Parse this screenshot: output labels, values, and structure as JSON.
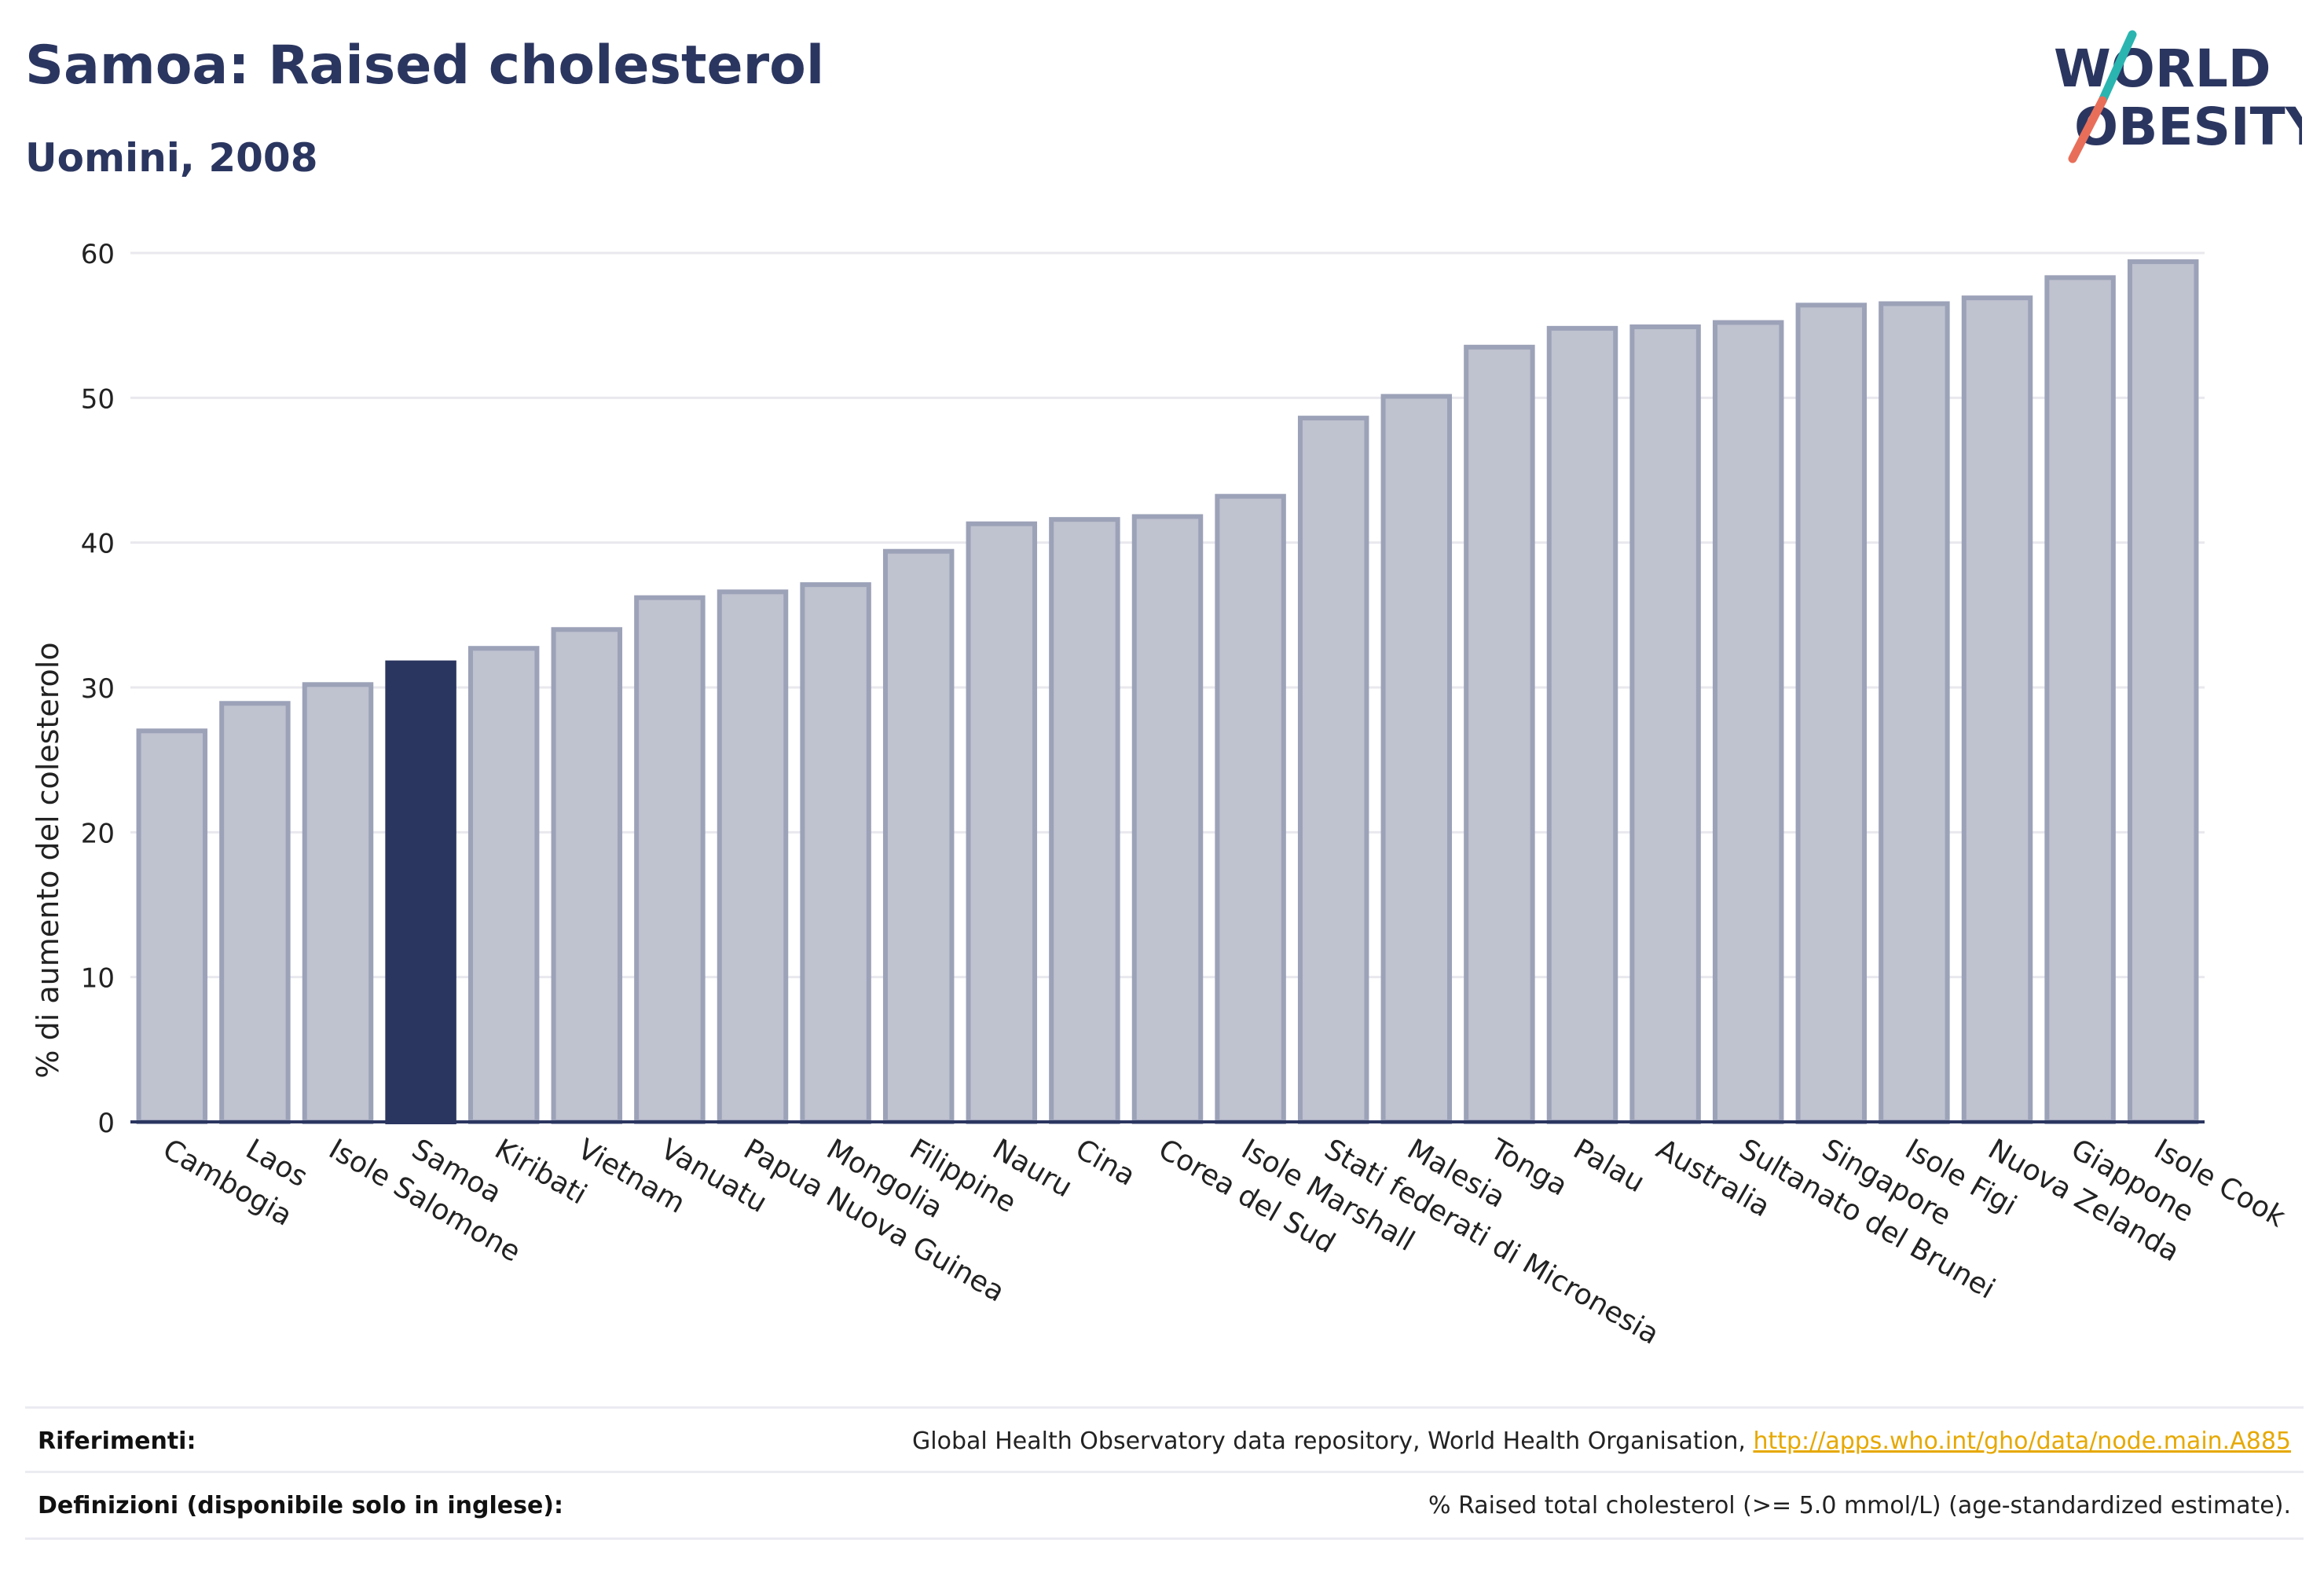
{
  "header": {
    "title": "Samoa: Raised cholesterol",
    "subtitle": "Uomini, 2008"
  },
  "logo": {
    "line1": "WORLD",
    "line2": "OBESITY"
  },
  "chart_data": {
    "type": "bar",
    "ylabel": "% di aumento del colesterolo",
    "xlabel": "",
    "ylim": [
      0,
      60
    ],
    "yticks": [
      0,
      10,
      20,
      30,
      40,
      50,
      60
    ],
    "grid": true,
    "highlight": "Samoa",
    "categories": [
      "Cambogia",
      "Laos",
      "Isole Salomone",
      "Samoa",
      "Kiribati",
      "Vietnam",
      "Vanuatu",
      "Papua Nuova Guinea",
      "Mongolia",
      "Filippine",
      "Nauru",
      "Cina",
      "Corea del Sud",
      "Isole Marshall",
      "Stati federati di Micronesia",
      "Malesia",
      "Tonga",
      "Palau",
      "Australia",
      "Sultanato del Brunei",
      "Singapore",
      "Isole Figi",
      "Nuova Zelanda",
      "Giappone",
      "Isole Cook"
    ],
    "values": [
      27.0,
      28.9,
      30.2,
      31.7,
      32.7,
      34.0,
      36.2,
      36.6,
      37.1,
      39.4,
      41.3,
      41.6,
      41.8,
      43.2,
      48.6,
      50.1,
      53.5,
      54.8,
      54.9,
      55.2,
      56.4,
      56.5,
      56.9,
      58.3,
      59.4
    ],
    "colors": {
      "bar": "#bfc2cf",
      "bar_edge": "#9ca2b8",
      "highlight": "#2b3660",
      "axis": "#2b3660",
      "grid": "#e8e8ee"
    }
  },
  "footer": {
    "references_label": "Riferimenti:",
    "references_text": "Global Health Observatory data repository, World Health Organisation, ",
    "references_link": "http://apps.who.int/gho/data/node.main.A885",
    "definitions_label": "Definizioni (disponibile solo in inglese):",
    "definitions_text": "% Raised total cholesterol (>= 5.0 mmol/L) (age-standardized estimate)."
  }
}
